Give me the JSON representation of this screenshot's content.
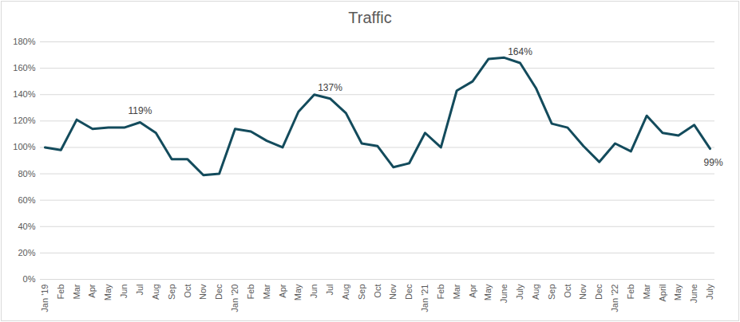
{
  "chart_data": {
    "type": "line",
    "title": "Traffic",
    "categories": [
      "Jan '19",
      "Feb",
      "Mar",
      "Apr",
      "May",
      "Jun",
      "Jul",
      "Aug",
      "Sep",
      "Oct",
      "Nov",
      "Dec",
      "Jan '20",
      "Feb",
      "Mar",
      "Apr",
      "May",
      "Jun",
      "Jul",
      "Aug",
      "Sep",
      "Oct",
      "Nov",
      "Dec",
      "Jan '21",
      "Feb",
      "Mar",
      "Apr",
      "May",
      "June",
      "July",
      "Aug",
      "Sep",
      "Oct",
      "Nov",
      "Dec",
      "Jan '22",
      "Feb",
      "Mar",
      "April",
      "May",
      "June",
      "July"
    ],
    "values": [
      100,
      98,
      121,
      114,
      115,
      115,
      119,
      111,
      91,
      91,
      79,
      80,
      114,
      112,
      105,
      100,
      127,
      140,
      137,
      126,
      103,
      101,
      85,
      88,
      111,
      100,
      143,
      150,
      167,
      168,
      164,
      145,
      118,
      115,
      101,
      89,
      103,
      97,
      124,
      111,
      109,
      117,
      99
    ],
    "color": "#134b5c",
    "ylim": [
      0,
      180
    ],
    "yticks": [
      {
        "value": 0,
        "label": "0%"
      },
      {
        "value": 20,
        "label": "20%"
      },
      {
        "value": 40,
        "label": "40%"
      },
      {
        "value": 60,
        "label": "60%"
      },
      {
        "value": 80,
        "label": "80%"
      },
      {
        "value": 100,
        "label": "100%"
      },
      {
        "value": 120,
        "label": "120%"
      },
      {
        "value": 140,
        "label": "140%"
      },
      {
        "value": 160,
        "label": "160%"
      },
      {
        "value": 180,
        "label": "180%"
      }
    ],
    "grid": true,
    "annotations": [
      {
        "x": 6,
        "y": 119,
        "label": "119%"
      },
      {
        "x": 18,
        "y": 137,
        "label": "137%"
      },
      {
        "x": 30,
        "y": 164,
        "label": "164%"
      },
      {
        "x": 42,
        "y": 99,
        "label": "99%"
      }
    ]
  }
}
